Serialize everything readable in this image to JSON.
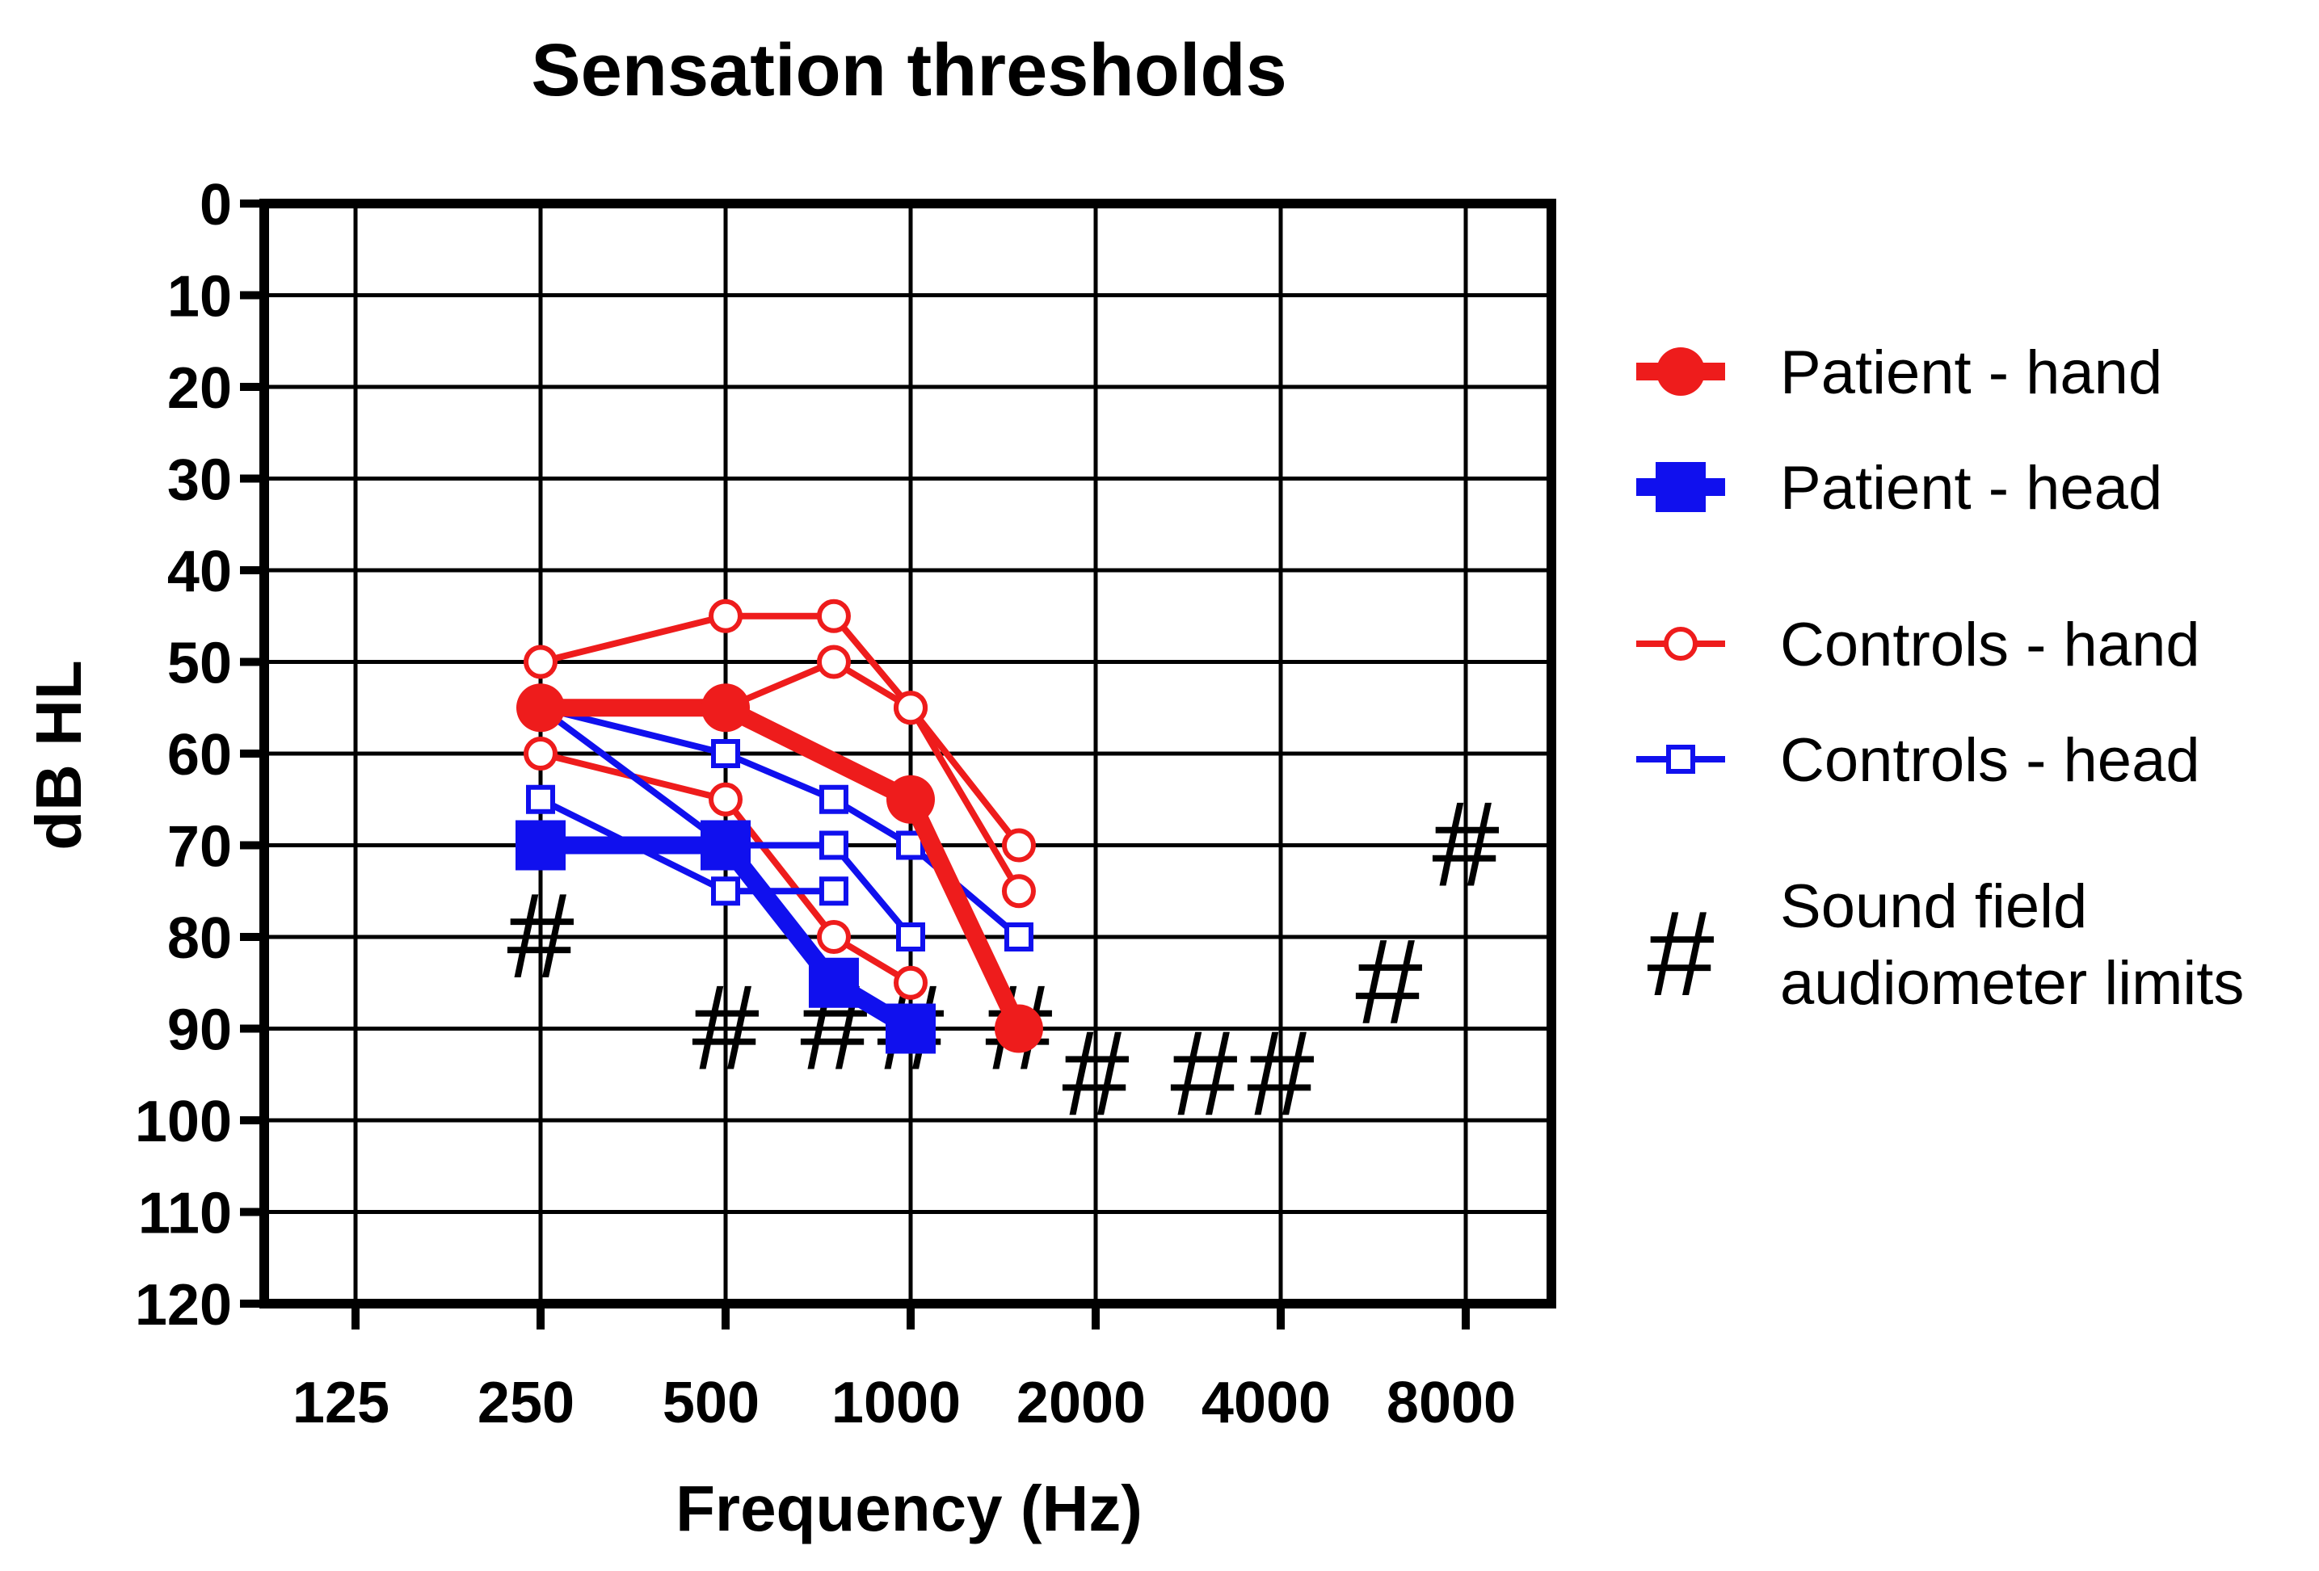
{
  "chart_data": {
    "type": "line",
    "title": "Sensation thresholds",
    "xlabel": "Frequency (Hz)",
    "ylabel": "dB HL",
    "x_ticks": [
      "125",
      "250",
      "500",
      "1000",
      "2000",
      "4000",
      "8000"
    ],
    "x_scale": "log2",
    "y_ticks": [
      "0",
      "10",
      "20",
      "30",
      "40",
      "50",
      "60",
      "70",
      "80",
      "90",
      "100",
      "110",
      "120"
    ],
    "ylim": [
      0,
      120
    ],
    "y_inverted": true,
    "grid": true,
    "legend_position": "right",
    "series": [
      {
        "name": "Patient - hand",
        "group": "patient-hand",
        "color": "#ee1c1c",
        "marker": "circle-filled",
        "bold": true,
        "x": [
          250,
          500,
          1000,
          1500
        ],
        "y": [
          55,
          55,
          65,
          90
        ]
      },
      {
        "name": "Patient - head",
        "group": "patient-head",
        "color": "#1010ee",
        "marker": "square-filled",
        "bold": true,
        "x": [
          250,
          500,
          750,
          1000
        ],
        "y": [
          70,
          70,
          85,
          90
        ]
      },
      {
        "name": "Controls - hand",
        "group": "controls-hand",
        "color": "#ee1c1c",
        "marker": "circle-open",
        "bold": false,
        "x": [
          250,
          500,
          750,
          1000,
          1500
        ],
        "y": [
          50,
          45,
          45,
          55,
          70
        ]
      },
      {
        "name": "Controls - hand",
        "group": "controls-hand",
        "color": "#ee1c1c",
        "marker": "circle-open",
        "bold": false,
        "x": [
          250,
          500,
          750,
          1000,
          1500
        ],
        "y": [
          55,
          55,
          50,
          55,
          75
        ]
      },
      {
        "name": "Controls - hand",
        "group": "controls-hand",
        "color": "#ee1c1c",
        "marker": "circle-open",
        "bold": false,
        "x": [
          250,
          500,
          750,
          1000
        ],
        "y": [
          60,
          65,
          80,
          85
        ]
      },
      {
        "name": "Controls - head",
        "group": "controls-head",
        "color": "#1010ee",
        "marker": "square-open",
        "bold": false,
        "x": [
          250,
          500,
          750,
          1000,
          1500
        ],
        "y": [
          55,
          60,
          65,
          70,
          80
        ]
      },
      {
        "name": "Controls - head",
        "group": "controls-head",
        "color": "#1010ee",
        "marker": "square-open",
        "bold": false,
        "x": [
          250,
          500,
          750,
          1000
        ],
        "y": [
          55,
          70,
          70,
          80
        ]
      },
      {
        "name": "Controls - head",
        "group": "controls-head",
        "color": "#1010ee",
        "marker": "square-open",
        "bold": false,
        "x": [
          250,
          500,
          750
        ],
        "y": [
          65,
          75,
          75
        ]
      }
    ],
    "limits": {
      "name": "Sound field audiometer limits",
      "symbol": "#",
      "x": [
        250,
        500,
        750,
        1000,
        1500,
        2000,
        3000,
        4000,
        6000,
        8000
      ],
      "y": [
        80,
        90,
        90,
        90,
        90,
        95,
        95,
        95,
        85,
        70
      ]
    },
    "legend": [
      {
        "label": "Patient - hand",
        "group": "patient-hand",
        "color": "#ee1c1c",
        "marker": "circle-filled",
        "bold": true
      },
      {
        "label": "Patient - head",
        "group": "patient-head",
        "color": "#1010ee",
        "marker": "square-filled",
        "bold": true
      },
      {
        "label": "Controls - hand",
        "group": "controls-hand",
        "color": "#ee1c1c",
        "marker": "circle-open",
        "bold": false
      },
      {
        "label": "Controls - head",
        "group": "controls-head",
        "color": "#1010ee",
        "marker": "square-open",
        "bold": false
      },
      {
        "label": "Sound field audiometer limits",
        "label_lines": [
          "Sound field",
          "audiometer limits"
        ],
        "symbol": "#"
      }
    ]
  }
}
